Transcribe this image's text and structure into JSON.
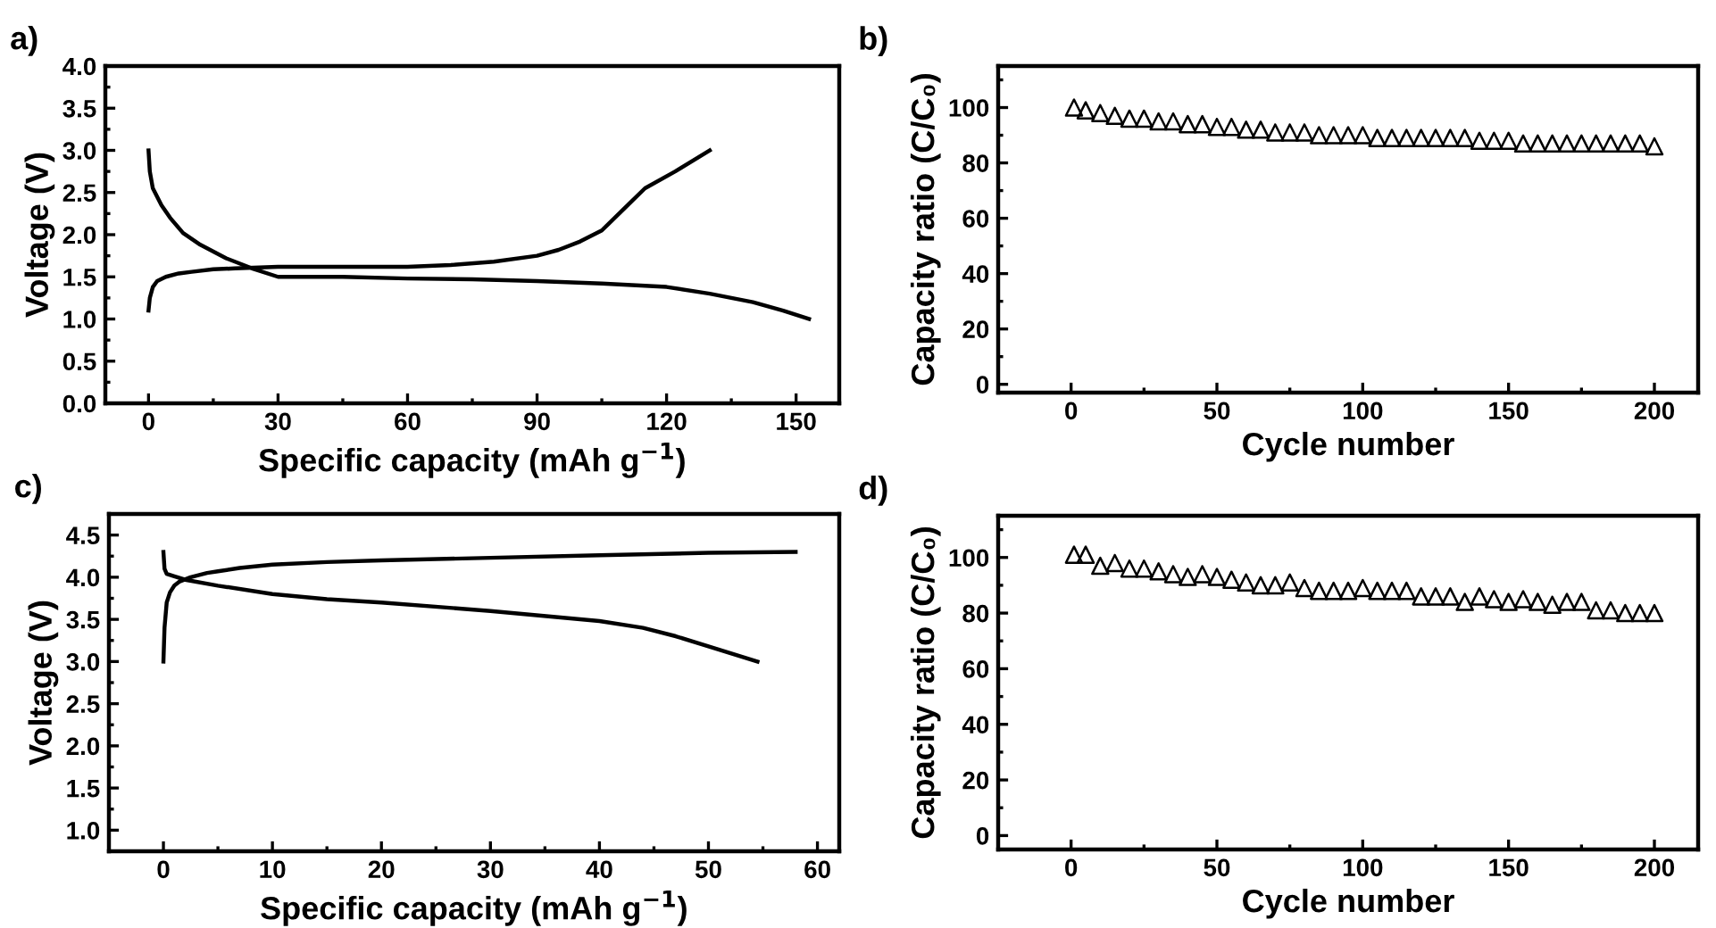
{
  "chart_data": [
    {
      "type": "line",
      "title": "a)",
      "xlabel": "Specific capacity (mAh g$^{−1}$)",
      "ylabel": "Voltage (V)",
      "xlim": [
        -10,
        160
      ],
      "ylim": [
        0,
        4.0
      ],
      "xticks": [
        0,
        30,
        60,
        90,
        120,
        150
      ],
      "yticks": [
        {
          "value": 0,
          "label": "0.0"
        },
        0.5,
        {
          "value": 1,
          "label": "1.0"
        },
        1.5,
        {
          "value": 2,
          "label": "2.0"
        },
        2.5,
        {
          "value": 3,
          "label": "3.0"
        },
        3.5,
        {
          "value": 4,
          "label": "4.0"
        }
      ],
      "grid": false,
      "marker": "none",
      "line_style": "solid",
      "series": [
        {
          "color": "#000000",
          "x": [
            0,
            0.3,
            1,
            2,
            4,
            7,
            10,
            15,
            20,
            30,
            45,
            60,
            70,
            80,
            90,
            95,
            100,
            105,
            110,
            115,
            122,
            130
          ],
          "values": [
            1.1,
            1.25,
            1.38,
            1.45,
            1.5,
            1.54,
            1.56,
            1.59,
            1.6,
            1.62,
            1.62,
            1.62,
            1.64,
            1.68,
            1.75,
            1.82,
            1.92,
            2.05,
            2.3,
            2.55,
            2.75,
            3.0
          ]
        },
        {
          "color": "#000000",
          "x": [
            0,
            0.3,
            1,
            3,
            5,
            8,
            12,
            18,
            24,
            30,
            45,
            60,
            75,
            90,
            105,
            120,
            130,
            140,
            147,
            153
          ],
          "values": [
            3.0,
            2.75,
            2.55,
            2.35,
            2.2,
            2.02,
            1.88,
            1.72,
            1.6,
            1.5,
            1.5,
            1.48,
            1.47,
            1.45,
            1.42,
            1.38,
            1.3,
            1.2,
            1.1,
            1.0
          ]
        }
      ]
    },
    {
      "type": "scatter",
      "title": "b)",
      "xlabel": "Cycle number",
      "ylabel": "Capacity ratio (C/C₀)",
      "xlim": [
        -25,
        215
      ],
      "ylim": [
        -3,
        115
      ],
      "xticks": [
        0,
        50,
        100,
        150,
        200
      ],
      "yticks": [
        0,
        20,
        40,
        60,
        80,
        100
      ],
      "grid": false,
      "marker": "triangle",
      "x": [
        1,
        5,
        10,
        15,
        20,
        25,
        30,
        35,
        40,
        45,
        50,
        55,
        60,
        65,
        70,
        75,
        80,
        85,
        90,
        95,
        100,
        105,
        110,
        115,
        120,
        125,
        130,
        135,
        140,
        145,
        150,
        155,
        160,
        165,
        170,
        175,
        180,
        185,
        190,
        195,
        200
      ],
      "series": [
        {
          "color": "#000000",
          "values": [
            100,
            99,
            98,
            97,
            96,
            96,
            95,
            95,
            94,
            94,
            93,
            93,
            92,
            92,
            91,
            91,
            91,
            90,
            90,
            90,
            90,
            89,
            89,
            89,
            89,
            89,
            89,
            89,
            88,
            88,
            88,
            87,
            87,
            87,
            87,
            87,
            87,
            87,
            87,
            87,
            86
          ]
        }
      ]
    },
    {
      "type": "line",
      "title": "c)",
      "xlabel": "Specific capacity (mAh g$^{−1}$)",
      "ylabel": "Voltage (V)",
      "xlim": [
        -5,
        62
      ],
      "ylim": [
        0.75,
        4.75
      ],
      "xticks": [
        0,
        10,
        20,
        30,
        40,
        50,
        60
      ],
      "yticks": [
        {
          "value": 1,
          "label": "1.0"
        },
        1.5,
        {
          "value": 2,
          "label": "2.0"
        },
        2.5,
        {
          "value": 3,
          "label": "3.0"
        },
        3.5,
        {
          "value": 4,
          "label": "4.0"
        },
        4.5
      ],
      "grid": false,
      "marker": "none",
      "line_style": "solid",
      "series": [
        {
          "color": "#000000",
          "x": [
            0,
            0.1,
            0.3,
            0.6,
            1,
            1.5,
            2.5,
            4,
            5,
            7,
            10,
            15,
            20,
            30,
            40,
            50,
            58
          ],
          "values": [
            3.0,
            3.4,
            3.7,
            3.82,
            3.9,
            3.95,
            4.0,
            4.05,
            4.07,
            4.11,
            4.15,
            4.18,
            4.2,
            4.23,
            4.26,
            4.29,
            4.3
          ]
        },
        {
          "color": "#000000",
          "x": [
            0,
            0.1,
            0.3,
            1,
            2,
            5,
            10,
            15,
            20,
            30,
            40,
            44,
            47,
            50,
            54.5
          ],
          "values": [
            4.3,
            4.1,
            4.04,
            4.01,
            3.97,
            3.9,
            3.8,
            3.74,
            3.7,
            3.6,
            3.48,
            3.4,
            3.3,
            3.18,
            3.0
          ]
        }
      ]
    },
    {
      "type": "scatter",
      "title": "d)",
      "xlabel": "Cycle number",
      "ylabel": "Capacity ratio (C/C₀)",
      "xlim": [
        -25,
        215
      ],
      "ylim": [
        -5,
        115
      ],
      "xticks": [
        0,
        50,
        100,
        150,
        200
      ],
      "yticks": [
        0,
        20,
        40,
        60,
        80,
        100
      ],
      "grid": false,
      "marker": "triangle",
      "x": [
        1,
        5,
        10,
        15,
        20,
        25,
        30,
        35,
        40,
        45,
        50,
        55,
        60,
        65,
        70,
        75,
        80,
        85,
        90,
        95,
        100,
        105,
        110,
        115,
        120,
        125,
        130,
        135,
        140,
        145,
        150,
        155,
        160,
        165,
        170,
        175,
        180,
        185,
        190,
        195,
        200
      ],
      "series": [
        {
          "color": "#000000",
          "values": [
            101,
            101,
            97,
            98,
            96,
            96,
            95,
            94,
            93,
            94,
            93,
            92,
            91,
            90,
            90,
            91,
            89,
            88,
            88,
            88,
            89,
            88,
            88,
            88,
            86,
            86,
            86,
            84,
            86,
            85,
            84,
            85,
            84,
            83,
            84,
            84,
            81,
            81,
            80,
            80,
            80
          ]
        }
      ]
    }
  ]
}
